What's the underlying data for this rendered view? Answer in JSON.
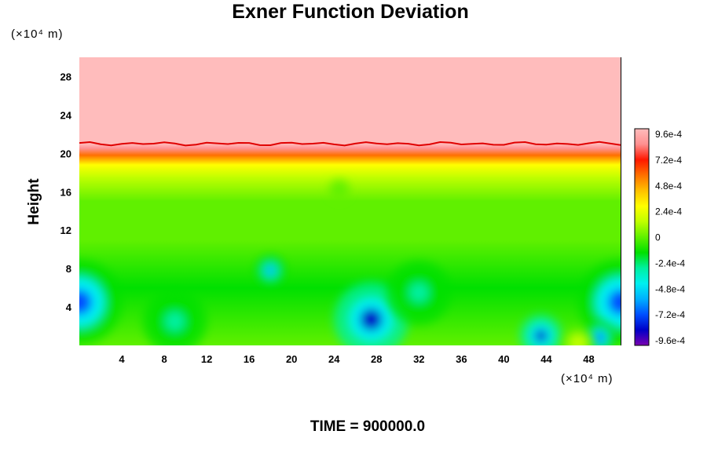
{
  "chart_data": {
    "type": "heatmap",
    "title": "Exner Function Deviation",
    "ylabel": "Height",
    "xlabel": "",
    "x_unit": "(×10⁴ m)",
    "y_unit": "(×10⁴ m)",
    "xlim": [
      0,
      51
    ],
    "ylim": [
      0,
      30
    ],
    "xticks": [
      "4",
      "8",
      "12",
      "16",
      "20",
      "24",
      "28",
      "32",
      "36",
      "40",
      "44",
      "48"
    ],
    "xtick_values": [
      4,
      8,
      12,
      16,
      20,
      24,
      28,
      32,
      36,
      40,
      44,
      48
    ],
    "yticks": [
      "4",
      "8",
      "12",
      "16",
      "20",
      "24",
      "28"
    ],
    "ytick_values": [
      4,
      8,
      12,
      16,
      20,
      24,
      28
    ],
    "colorbar": {
      "range": [
        -0.00096,
        0.00096
      ],
      "labels": [
        "9.6e-4",
        "7.2e-4",
        "4.8e-4",
        "2.4e-4",
        "0",
        "-2.4e-4",
        "-4.8e-4",
        "-7.2e-4",
        "-9.6e-4"
      ],
      "label_values": [
        0.00096,
        0.00072,
        0.00048,
        0.00024,
        0,
        -0.00024,
        -0.00048,
        -0.00072,
        -0.00096
      ],
      "colors_low_to_high": [
        "#7a00b0",
        "#0000c8",
        "#0050ff",
        "#00b0ff",
        "#00f0f0",
        "#00f0a0",
        "#00e000",
        "#60f000",
        "#c0ff00",
        "#ffff00",
        "#ffc000",
        "#ff7000",
        "#ff1800",
        "#ff9090",
        "#ffbcbc"
      ]
    },
    "vertical_profile": [
      {
        "height": 0,
        "value": -6e-05
      },
      {
        "height": 6,
        "value": -0.00016
      },
      {
        "height": 11,
        "value": -4e-05
      },
      {
        "height": 15,
        "value": 2e-05
      },
      {
        "height": 17.5,
        "value": 0.00012
      },
      {
        "height": 18.8,
        "value": 0.00034
      },
      {
        "height": 19.8,
        "value": 0.00058
      },
      {
        "height": 20.5,
        "value": 0.00082
      },
      {
        "height": 21.0,
        "value": 0.00096
      },
      {
        "height": 30,
        "value": 0.00096
      }
    ],
    "features": [
      {
        "x": 0,
        "y": 4.5,
        "value": -0.00072,
        "radius": 4
      },
      {
        "x": 51,
        "y": 4.5,
        "value": -0.00072,
        "radius": 4
      },
      {
        "x": 27.5,
        "y": 2.7,
        "value": -0.00085,
        "radius": 3.5
      },
      {
        "x": 18,
        "y": 7.8,
        "value": -0.0006,
        "radius": 1.5
      },
      {
        "x": 43.5,
        "y": 1.0,
        "value": -0.00085,
        "radius": 2
      },
      {
        "x": 49,
        "y": 0.8,
        "value": -0.00065,
        "radius": 1.5
      },
      {
        "x": 9,
        "y": 2.5,
        "value": -0.0003,
        "radius": 3
      },
      {
        "x": 32,
        "y": 5.5,
        "value": -0.0003,
        "radius": 3
      },
      {
        "x": 24.5,
        "y": 16.2,
        "value": -6e-05,
        "radius": 1
      },
      {
        "x": 47,
        "y": 0.2,
        "value": 0.0002,
        "radius": 1.5
      }
    ],
    "background_color_top": "#ffbcbc"
  },
  "footer": {
    "time_label": "TIME = 900000.0"
  }
}
